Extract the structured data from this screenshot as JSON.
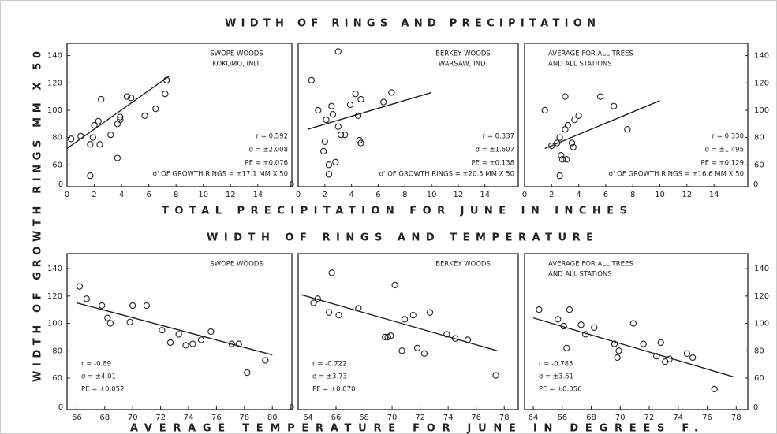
{
  "figure": {
    "top_title": "WIDTH OF RINGS AND PRECIPITATION",
    "top_x_label": "TOTAL PRECIPITATION FOR JUNE IN INCHES",
    "bottom_title": "WIDTH OF RINGS AND TEMPERATURE",
    "bottom_x_label": "AVERAGE TEMPERATURE FOR JUNE IN DEGREES F.",
    "y_label": "WIDTH OF GROWTH RINGS MM X 50"
  },
  "chart_data": [
    {
      "type": "scatter",
      "labels": [
        "SWOPE WOODS",
        "KOKOMO, IND."
      ],
      "stats": [
        "r = 0.592",
        "σ = ±2.008",
        "PE = ±0.076"
      ],
      "note": "σ' OF GROWTH RINGS = ±17.1 MM X 50",
      "x": [
        0.3,
        1,
        1.7,
        1.9,
        2,
        2.3,
        2.4,
        2.5,
        3.2,
        3.7,
        3.7,
        3.9,
        3.9,
        4.4,
        4.7,
        5.7,
        6.5,
        7.3,
        7.2,
        1.7
      ],
      "values": [
        79,
        81,
        75,
        80,
        89,
        92,
        75,
        108,
        82,
        65,
        90,
        95,
        93,
        110,
        109,
        96,
        101,
        122,
        112,
        52
      ],
      "fit_line": {
        "x": [
          0,
          7.5
        ],
        "y": [
          72,
          125
        ]
      },
      "xlim": [
        0,
        16.5
      ],
      "ylim": [
        44,
        149
      ],
      "xticks": [
        0,
        2,
        4,
        6,
        8,
        10,
        12,
        14
      ],
      "yticks": [
        60,
        80,
        100,
        120,
        140
      ],
      "break_label": "0"
    },
    {
      "type": "scatter",
      "labels": [
        "BERKEY WOODS",
        "WARSAW, IND."
      ],
      "stats": [
        "r = 0.337",
        "σ = ±1.607",
        "PE = ±0.138"
      ],
      "note": "σ' OF GROWTH RINGS = ±20.5 MM X 50",
      "x": [
        1,
        1.5,
        1.9,
        2,
        2.1,
        2.3,
        2.5,
        2.6,
        2.8,
        3,
        3,
        3.2,
        3.5,
        3.9,
        4.3,
        4.5,
        4.6,
        4.7,
        4.7,
        6.4,
        7,
        2.3
      ],
      "values": [
        122,
        100,
        70,
        77,
        93,
        60,
        103,
        97,
        62,
        143,
        88,
        82,
        82,
        104,
        112,
        96,
        78,
        108,
        76,
        106,
        113,
        53
      ],
      "fit_line": {
        "x": [
          0.7,
          10
        ],
        "y": [
          86,
          113
        ]
      },
      "xlim": [
        0,
        16.5
      ],
      "ylim": [
        44,
        149
      ],
      "xticks": [
        0,
        2,
        4,
        6,
        8,
        10,
        12,
        14
      ],
      "yticks": [],
      "break_label": "0"
    },
    {
      "type": "scatter",
      "labels": [
        "AVERAGE FOR ALL TREES",
        "AND ALL STATIONS"
      ],
      "stats": [
        "r = 0.330",
        "σ = ±1.495",
        "PE = ±0.129"
      ],
      "note": "σ' OF GROWTH RINGS = ±16.6 MM X 50",
      "x": [
        1.5,
        2,
        2.4,
        2.6,
        2.7,
        2.8,
        3,
        3,
        3.1,
        3.2,
        3.5,
        3.6,
        3.7,
        4,
        5.6,
        6.6,
        7.6,
        2.6
      ],
      "values": [
        100,
        74,
        76,
        80,
        67,
        64,
        110,
        86,
        64,
        89,
        76,
        73,
        93,
        96,
        110,
        103,
        86,
        52
      ],
      "fit_line": {
        "x": [
          1.5,
          10
        ],
        "y": [
          72,
          107
        ]
      },
      "xlim": [
        0,
        16.5
      ],
      "ylim": [
        44,
        149
      ],
      "xticks": [
        0,
        2,
        4,
        6,
        8,
        10,
        12,
        14
      ],
      "yticks": [
        60,
        80,
        100,
        120,
        140
      ],
      "break_label": "0"
    },
    {
      "type": "scatter",
      "labels": [
        "SWOPE WOODS"
      ],
      "stats": [
        "r = -0.89",
        "σ = ±4.01",
        "PE = ±0.052"
      ],
      "x": [
        66.2,
        66.7,
        67.8,
        68.2,
        68.4,
        69.8,
        70,
        71,
        72.1,
        72.7,
        73.3,
        73.8,
        74.3,
        74.9,
        75.6,
        77.1,
        77.6,
        78.2,
        79.5
      ],
      "values": [
        127,
        118,
        113,
        104,
        100,
        101,
        113,
        113,
        95,
        86,
        92,
        84,
        85,
        88,
        94,
        85,
        85,
        64,
        73
      ],
      "fit_line": {
        "x": [
          66,
          80
        ],
        "y": [
          115,
          77
        ]
      },
      "xlim": [
        65.3,
        81.4
      ],
      "ylim": [
        37,
        151
      ],
      "xticks": [
        66,
        68,
        70,
        72,
        74,
        76,
        78,
        80
      ],
      "yticks": [
        60,
        80,
        100,
        120,
        140
      ],
      "break_label": "0"
    },
    {
      "type": "scatter",
      "labels": [
        "BERKEY WOODS"
      ],
      "stats": [
        "r = -0.722",
        "σ = ±3.73",
        "PE = ±0.070"
      ],
      "x": [
        64.4,
        64.7,
        65.5,
        65.7,
        66.2,
        67.6,
        69.5,
        69.7,
        69.9,
        70.2,
        70.7,
        70.9,
        71.5,
        71.8,
        72.3,
        72.7,
        73.9,
        74.5,
        75.4,
        77.4
      ],
      "values": [
        115,
        118,
        108,
        137,
        106,
        111,
        90,
        90,
        91,
        128,
        80,
        103,
        106,
        82,
        78,
        108,
        92,
        89,
        88,
        62
      ],
      "fit_line": {
        "x": [
          63.5,
          77.5
        ],
        "y": [
          121,
          80
        ]
      },
      "xlim": [
        63.3,
        79
      ],
      "ylim": [
        37,
        151
      ],
      "xticks": [
        64,
        66,
        68,
        70,
        72,
        74,
        76,
        78
      ],
      "yticks": [],
      "break_label": "0"
    },
    {
      "type": "scatter",
      "labels": [
        "AVERAGE FOR ALL TREES",
        "AND ALL STATIONS"
      ],
      "stats": [
        "r = -0.785",
        "σ = ±3.61",
        "PE = ±0.056"
      ],
      "x": [
        64.4,
        65.7,
        66.1,
        66.3,
        66.5,
        67.3,
        67.6,
        68.2,
        69.6,
        69.8,
        69.9,
        70.9,
        71.6,
        72.5,
        72.8,
        73.1,
        73.4,
        74.6,
        75,
        76.5
      ],
      "values": [
        110,
        103,
        98,
        82,
        110,
        99,
        92,
        97,
        85,
        75,
        80,
        100,
        85,
        76,
        86,
        72,
        74,
        78,
        75,
        52
      ],
      "fit_line": {
        "x": [
          64,
          77.8
        ],
        "y": [
          104,
          61
        ]
      },
      "xlim": [
        63.4,
        78.8
      ],
      "ylim": [
        37,
        151
      ],
      "xticks": [
        64,
        66,
        68,
        70,
        72,
        74,
        76,
        78
      ],
      "yticks": [
        60,
        80,
        100,
        120,
        140
      ],
      "break_label": "0"
    }
  ]
}
